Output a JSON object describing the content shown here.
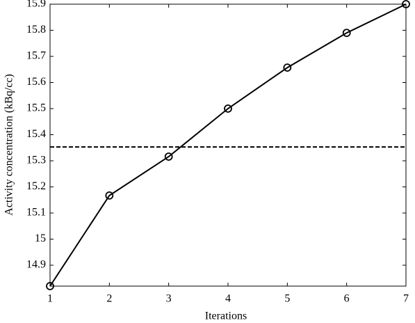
{
  "chart_data": {
    "type": "line",
    "x_label": "Iterations",
    "y_label": "Activity concentration (kBq/cc)",
    "x": [
      1,
      2,
      3,
      4,
      5,
      6,
      7
    ],
    "series": [
      {
        "color": "#000000",
        "values": [
          14.82,
          15.167,
          15.316,
          15.5,
          15.657,
          15.79,
          15.9
        ]
      }
    ],
    "hline": 15.353,
    "xlim": [
      1,
      7
    ],
    "xticks": [
      1,
      2,
      3,
      4,
      5,
      6,
      7
    ],
    "ylim": [
      14.82,
      15.9
    ],
    "yticks": [
      14.9,
      15,
      15.1,
      15.2,
      15.3,
      15.4,
      15.5,
      15.6,
      15.7,
      15.8,
      15.9
    ],
    "grid": false
  }
}
